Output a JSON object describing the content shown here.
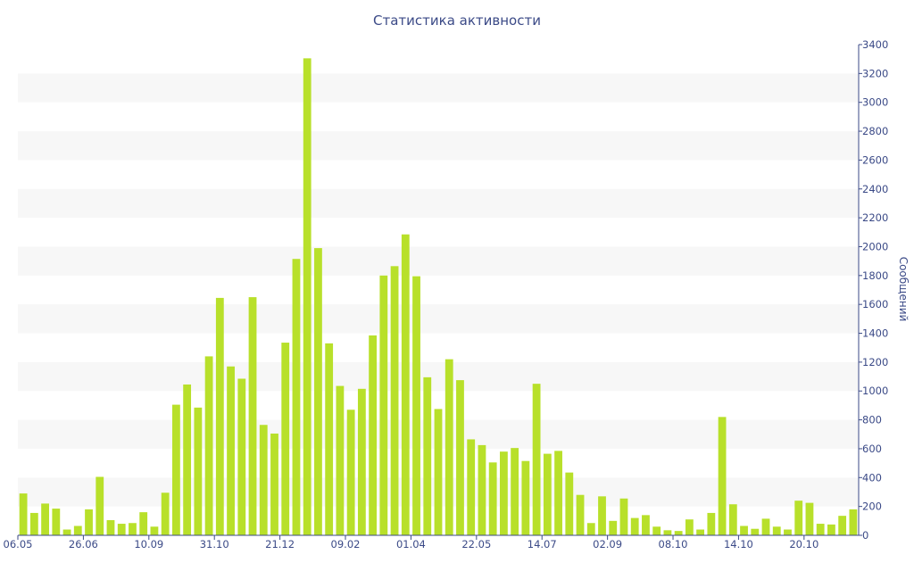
{
  "chart_data": {
    "type": "bar",
    "title": "Статистика активности",
    "ylabel": "Сообщений",
    "y_axis_side": "right",
    "ylim": [
      0,
      3400
    ],
    "ytick_step": 200,
    "grid": "alternating horizontal bands",
    "bar_color": "#b8e02a",
    "band_color": "#f7f7f7",
    "axis_color": "#3b4a87",
    "x_tick_labels": [
      {
        "index": 0,
        "label": "06.05"
      },
      {
        "index": 6,
        "label": "26.06"
      },
      {
        "index": 12,
        "label": "10.09"
      },
      {
        "index": 18,
        "label": "31.10"
      },
      {
        "index": 24,
        "label": "21.12"
      },
      {
        "index": 30,
        "label": "09.02"
      },
      {
        "index": 36,
        "label": "01.04"
      },
      {
        "index": 42,
        "label": "22.05"
      },
      {
        "index": 48,
        "label": "14.07"
      },
      {
        "index": 54,
        "label": "02.09"
      },
      {
        "index": 60,
        "label": "08.10"
      },
      {
        "index": 66,
        "label": "14.10"
      },
      {
        "index": 72,
        "label": "20.10"
      }
    ],
    "values": [
      290,
      155,
      220,
      185,
      40,
      65,
      180,
      405,
      105,
      80,
      85,
      160,
      60,
      295,
      905,
      1045,
      885,
      1240,
      1645,
      1170,
      1085,
      1650,
      765,
      705,
      1335,
      1915,
      3305,
      1990,
      1330,
      1035,
      870,
      1015,
      1385,
      1800,
      1865,
      2085,
      1795,
      1095,
      875,
      1220,
      1075,
      665,
      625,
      505,
      580,
      605,
      515,
      1050,
      565,
      585,
      435,
      280,
      85,
      270,
      100,
      255,
      120,
      140,
      60,
      35,
      30,
      110,
      40,
      155,
      820,
      215,
      65,
      45,
      115,
      60,
      40,
      240,
      225,
      80,
      75,
      135,
      180
    ]
  }
}
